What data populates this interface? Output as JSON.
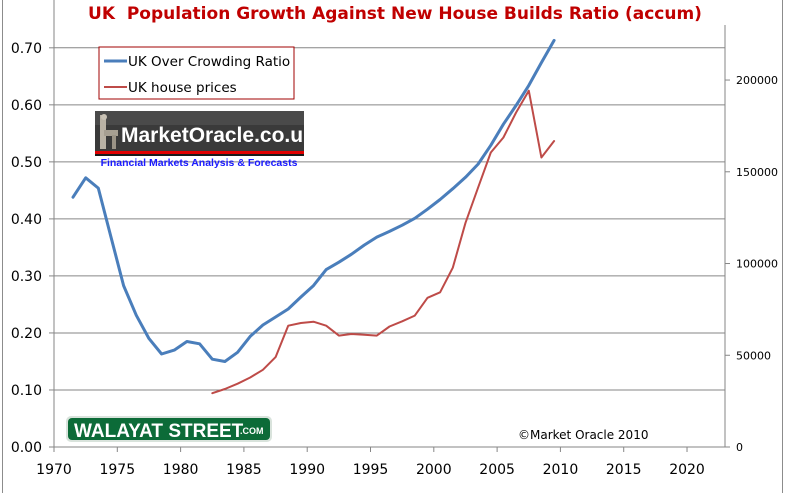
{
  "chart_data": {
    "type": "line",
    "title": "UK  Population Growth Against New House Builds Ratio (accum)",
    "xlabel": "",
    "ylabel_left": "",
    "ylabel_right": "",
    "x_range": [
      1970,
      2023
    ],
    "x_ticks": [
      "1970",
      "1975",
      "1980",
      "1985",
      "1990",
      "1995",
      "2000",
      "2005",
      "2010",
      "2015",
      "2020"
    ],
    "x_tick_values": [
      1970,
      1975,
      1980,
      1985,
      1990,
      1995,
      2000,
      2005,
      2010,
      2015,
      2020
    ],
    "ylim_left": [
      0,
      0.74
    ],
    "y_ticks_left": [
      "0.00",
      "0.10",
      "0.20",
      "0.30",
      "0.40",
      "0.50",
      "0.60",
      "0.70"
    ],
    "y_tick_values_left": [
      0,
      0.1,
      0.2,
      0.3,
      0.4,
      0.5,
      0.6,
      0.7
    ],
    "ylim_right": [
      0,
      230000
    ],
    "y_ticks_right": [
      "0",
      "50000",
      "100000",
      "150000",
      "200000"
    ],
    "y_tick_values_right": [
      0,
      50000,
      100000,
      150000,
      200000
    ],
    "grid": "horizontal (left axis)",
    "legend_position": "top-left",
    "series": [
      {
        "name": "UK Over Crowding Ratio",
        "axis": "left",
        "color": "#4a7ebb",
        "x": [
          1971,
          1972,
          1973,
          1974,
          1975,
          1976,
          1977,
          1978,
          1979,
          1980,
          1981,
          1982,
          1983,
          1984,
          1985,
          1986,
          1987,
          1988,
          1989,
          1990,
          1991,
          1992,
          1993,
          1994,
          1995,
          1996,
          1997,
          1998,
          1999,
          2000,
          2001,
          2002,
          2003,
          2004,
          2005,
          2006,
          2007,
          2008,
          2009
        ],
        "values": [
          0.438,
          0.472,
          0.454,
          0.368,
          0.283,
          0.231,
          0.19,
          0.163,
          0.17,
          0.185,
          0.181,
          0.154,
          0.15,
          0.166,
          0.194,
          0.214,
          0.228,
          0.242,
          0.263,
          0.283,
          0.311,
          0.324,
          0.338,
          0.354,
          0.368,
          0.378,
          0.389,
          0.401,
          0.417,
          0.434,
          0.453,
          0.473,
          0.496,
          0.529,
          0.566,
          0.599,
          0.634,
          0.674,
          0.713
        ]
      },
      {
        "name": "UK house prices",
        "axis": "right",
        "color": "#be4b48",
        "x": [
          1982,
          1983,
          1984,
          1985,
          1986,
          1987,
          1988,
          1989,
          1990,
          1991,
          1992,
          1993,
          1994,
          1995,
          1996,
          1997,
          1998,
          1999,
          2000,
          2001,
          2002,
          2003,
          2004,
          2005,
          2006,
          2007,
          2008,
          2009
        ],
        "values": [
          29300,
          31600,
          34500,
          37900,
          42100,
          49000,
          66100,
          67600,
          68300,
          66100,
          60700,
          61600,
          61200,
          60700,
          65700,
          68500,
          71600,
          81300,
          84300,
          97700,
          122200,
          141400,
          160500,
          168700,
          182300,
          194200,
          157800,
          166800
        ]
      }
    ],
    "annotations": [
      "©Market Oracle 2010"
    ]
  },
  "legend": {
    "items": [
      {
        "label": "UK Over Crowding Ratio",
        "color": "#4a7ebb"
      },
      {
        "label": "UK house prices",
        "color": "#be4b48"
      }
    ],
    "border_color": "#a00000"
  },
  "logos": {
    "market_oracle": {
      "name": "MarketOracle.co.uk",
      "tagline": "Financial Markets Analysis & Forecasts"
    },
    "walayat_street": {
      "name": "WALAYAT STREET",
      "suffix": ".COM"
    }
  },
  "copyright": "©Market Oracle 2010"
}
